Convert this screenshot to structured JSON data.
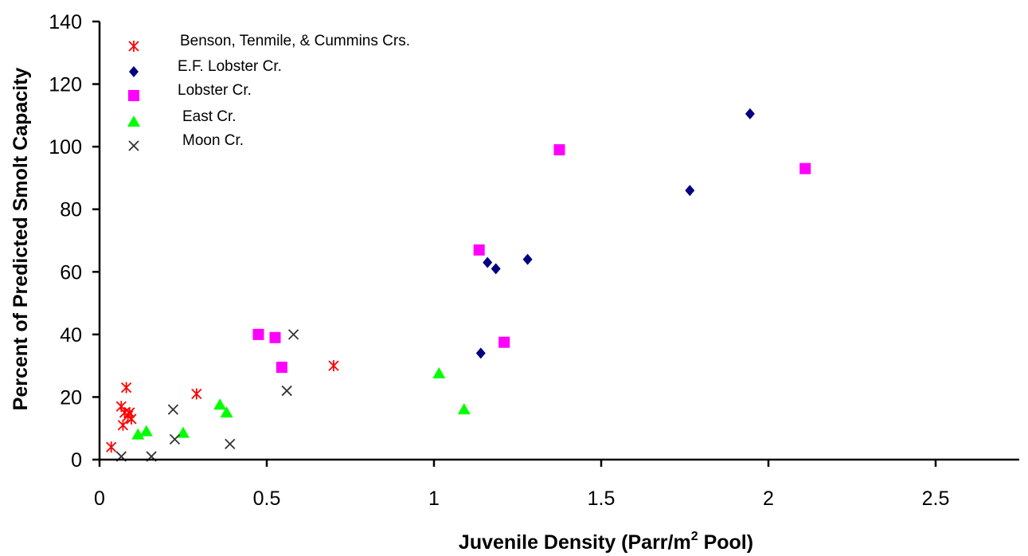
{
  "chart_data": {
    "type": "scatter",
    "title": "",
    "xlabel": "Juvenile Density (Parr/m",
    "xlabel_sup": "2",
    "xlabel_tail": " Pool)",
    "ylabel": "Percent of Predicted Smolt Capacity",
    "xlim": [
      0,
      2.75
    ],
    "ylim": [
      0,
      140
    ],
    "x_ticks": [
      0,
      0.5,
      1,
      1.5,
      2,
      2.5
    ],
    "x_tick_labels": [
      "0",
      "0.5",
      "1",
      "1.5",
      "2",
      "2.5"
    ],
    "y_ticks": [
      0,
      20,
      40,
      60,
      80,
      100,
      120,
      140
    ],
    "y_tick_labels": [
      "0",
      "20",
      "40",
      "60",
      "80",
      "100",
      "120",
      "140"
    ],
    "grid": false,
    "legend_position": "top-left",
    "series": [
      {
        "name": "Benson, Tenmile, & Cummins Crs.",
        "marker": "asterisk",
        "color": "#ff0000",
        "points": [
          [
            0.035,
            4
          ],
          [
            0.07,
            11
          ],
          [
            0.065,
            17
          ],
          [
            0.075,
            15
          ],
          [
            0.08,
            23
          ],
          [
            0.085,
            14
          ],
          [
            0.09,
            15
          ],
          [
            0.095,
            13
          ],
          [
            0.29,
            21
          ],
          [
            0.7,
            30
          ]
        ]
      },
      {
        "name": "E.F. Lobster Cr.",
        "marker": "diamond",
        "color": "#000080",
        "points": [
          [
            1.14,
            34
          ],
          [
            1.16,
            63
          ],
          [
            1.185,
            61
          ],
          [
            1.28,
            64
          ],
          [
            1.765,
            86
          ],
          [
            1.945,
            110.5
          ]
        ]
      },
      {
        "name": "Lobster Cr.",
        "marker": "square",
        "color": "#ff00ff",
        "points": [
          [
            0.475,
            40
          ],
          [
            0.525,
            39
          ],
          [
            0.545,
            29.5
          ],
          [
            1.135,
            67
          ],
          [
            1.21,
            37.5
          ],
          [
            1.375,
            99
          ],
          [
            2.11,
            93
          ]
        ]
      },
      {
        "name": "East Cr.",
        "marker": "triangle",
        "color": "#00ff00",
        "points": [
          [
            0.115,
            8
          ],
          [
            0.14,
            9
          ],
          [
            0.25,
            8.5
          ],
          [
            0.36,
            17.5
          ],
          [
            0.38,
            15
          ],
          [
            1.015,
            27.5
          ],
          [
            1.09,
            16
          ]
        ]
      },
      {
        "name": "Moon Cr.",
        "marker": "x",
        "color": "#333333",
        "points": [
          [
            0.065,
            1
          ],
          [
            0.155,
            1
          ],
          [
            0.22,
            16
          ],
          [
            0.225,
            6.5
          ],
          [
            0.39,
            5
          ],
          [
            0.56,
            22
          ],
          [
            0.58,
            40
          ]
        ]
      }
    ]
  }
}
